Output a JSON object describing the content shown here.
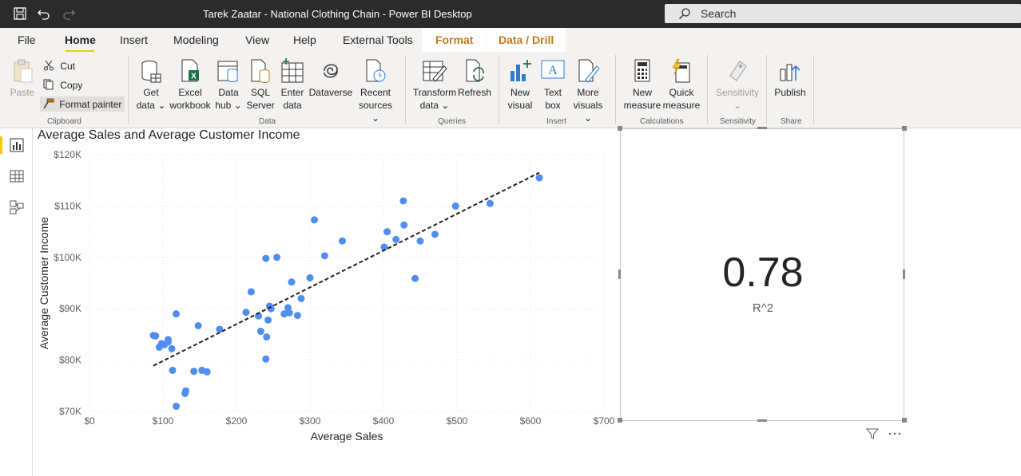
{
  "window": {
    "title": "Tarek Zaatar - National Clothing Chain - Power BI Desktop",
    "search_placeholder": "Search"
  },
  "menu": {
    "items": [
      "File",
      "Home",
      "Insert",
      "Modeling",
      "View",
      "Help",
      "External Tools"
    ],
    "active": "Home",
    "context_tabs": [
      "Format",
      "Data / Drill"
    ]
  },
  "ribbon": {
    "clipboard": {
      "paste": "Paste",
      "cut": "Cut",
      "copy": "Copy",
      "format_painter": "Format painter",
      "group": "Clipboard"
    },
    "data": {
      "get_data": [
        "Get",
        "data"
      ],
      "excel": [
        "Excel",
        "workbook"
      ],
      "data_hub": [
        "Data",
        "hub"
      ],
      "sql": [
        "SQL",
        "Server"
      ],
      "enter_data": [
        "Enter",
        "data"
      ],
      "dataverse": "Dataverse",
      "recent": [
        "Recent",
        "sources"
      ],
      "group": "Data"
    },
    "queries": {
      "transform": [
        "Transform",
        "data"
      ],
      "refresh": "Refresh",
      "group": "Queries"
    },
    "insert": {
      "new_visual": [
        "New",
        "visual"
      ],
      "text_box": [
        "Text",
        "box"
      ],
      "more_visuals": [
        "More",
        "visuals"
      ],
      "group": "Insert"
    },
    "calculations": {
      "new_measure": [
        "New",
        "measure"
      ],
      "quick_measure": [
        "Quick",
        "measure"
      ],
      "group": "Calculations"
    },
    "sensitivity": {
      "label": "Sensitivity",
      "group": "Sensitivity"
    },
    "share": {
      "publish": "Publish",
      "group": "Share"
    }
  },
  "card": {
    "value": "0.78",
    "label": "R^2"
  },
  "colors": {
    "point": "#4f8ef0",
    "accent": "#f2c811",
    "context_tab": "#c27b1a"
  },
  "chart_data": {
    "type": "scatter",
    "title": "Average Sales and Average Customer Income",
    "xlabel": "Average Sales",
    "ylabel": "Average Customer Income",
    "xlim": [
      0,
      700
    ],
    "ylim": [
      70000,
      120000
    ],
    "x_ticks": [
      "$0",
      "$100",
      "$200",
      "$300",
      "$400",
      "$500",
      "$600",
      "$700"
    ],
    "y_ticks": [
      "$70K",
      "$80K",
      "$90K",
      "$100K",
      "$110K",
      "$120K"
    ],
    "grid": true,
    "trendline": {
      "style": "dashed",
      "from": [
        87,
        78900
      ],
      "to": [
        612,
        116500
      ]
    },
    "points": [
      [
        87,
        84800
      ],
      [
        90,
        84700
      ],
      [
        95,
        82500
      ],
      [
        98,
        83200
      ],
      [
        102,
        83000
      ],
      [
        107,
        83500
      ],
      [
        107,
        84000
      ],
      [
        112,
        82200
      ],
      [
        113,
        78000
      ],
      [
        118,
        71000
      ],
      [
        118,
        89000
      ],
      [
        130,
        73500
      ],
      [
        131,
        74000
      ],
      [
        142,
        77800
      ],
      [
        148,
        86700
      ],
      [
        153,
        78000
      ],
      [
        160,
        77700
      ],
      [
        177,
        86000
      ],
      [
        213,
        89300
      ],
      [
        220,
        93300
      ],
      [
        230,
        88600
      ],
      [
        233,
        85600
      ],
      [
        240,
        99800
      ],
      [
        240,
        80200
      ],
      [
        241,
        84500
      ],
      [
        243,
        87800
      ],
      [
        245,
        90500
      ],
      [
        247,
        90000
      ],
      [
        255,
        100000
      ],
      [
        265,
        89000
      ],
      [
        270,
        90200
      ],
      [
        272,
        89200
      ],
      [
        275,
        95200
      ],
      [
        283,
        88700
      ],
      [
        288,
        92000
      ],
      [
        300,
        96000
      ],
      [
        306,
        107300
      ],
      [
        320,
        100300
      ],
      [
        344,
        103200
      ],
      [
        401,
        102000
      ],
      [
        405,
        105000
      ],
      [
        417,
        103500
      ],
      [
        427,
        111000
      ],
      [
        428,
        106300
      ],
      [
        443,
        95900
      ],
      [
        450,
        103200
      ],
      [
        470,
        104500
      ],
      [
        498,
        110000
      ],
      [
        545,
        110500
      ],
      [
        612,
        115500
      ]
    ]
  },
  "left_nav": [
    "report-view",
    "data-view",
    "model-view"
  ]
}
